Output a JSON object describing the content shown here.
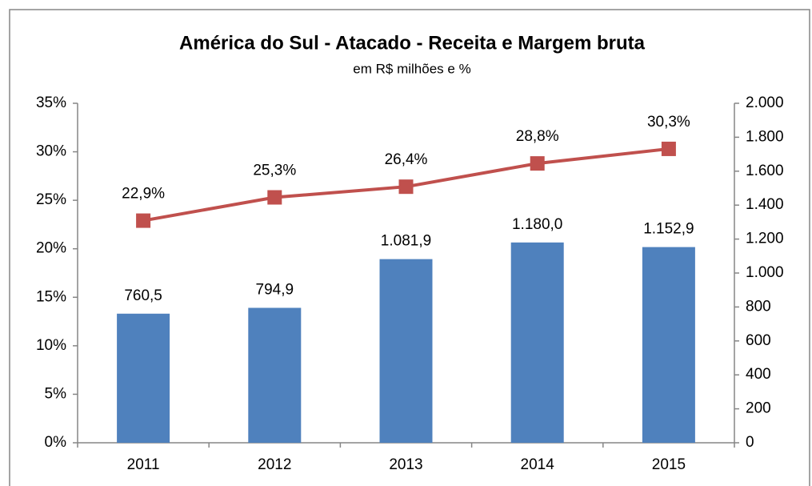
{
  "chart_data": {
    "type": "bar_line",
    "title": "América do Sul - Atacado - Receita e Margem bruta",
    "subtitle": "em R$ milhões e %",
    "categories": [
      "2011",
      "2012",
      "2013",
      "2014",
      "2015"
    ],
    "series": [
      {
        "name": "Receita",
        "type": "bar",
        "axis": "y2",
        "color": "#4f81bd",
        "values": [
          760.5,
          794.9,
          1081.9,
          1180.0,
          1152.9
        ],
        "value_labels": [
          "760,5",
          "794,9",
          "1.081,9",
          "1.180,0",
          "1.152,9"
        ]
      },
      {
        "name": "Margem bruta",
        "type": "line",
        "color": "#c0504d",
        "values": [
          22.9,
          25.3,
          26.4,
          28.8,
          30.3
        ],
        "value_labels": [
          "22,9%",
          "25,3%",
          "26,4%",
          "28,8%",
          "30,3%"
        ]
      }
    ],
    "ylim": [
      0,
      35
    ],
    "yticks": [
      {
        "value": 0,
        "label": "0%"
      },
      {
        "value": 5,
        "label": "5%"
      },
      {
        "value": 10,
        "label": "10%"
      },
      {
        "value": 15,
        "label": "15%"
      },
      {
        "value": 20,
        "label": "20%"
      },
      {
        "value": 25,
        "label": "25%"
      },
      {
        "value": 30,
        "label": "30%"
      },
      {
        "value": 35,
        "label": "35%"
      }
    ],
    "y2lim": [
      0,
      2000
    ],
    "y2ticks": [
      0,
      200,
      400,
      600,
      800,
      {
        "value": 1000,
        "label": "1.000"
      },
      {
        "value": 1200,
        "label": "1.200"
      },
      {
        "value": 1400,
        "label": "1.400"
      },
      {
        "value": 1600,
        "label": "1.600"
      },
      {
        "value": 1800,
        "label": "1.800"
      },
      {
        "value": 2000,
        "label": "2.000"
      }
    ],
    "grid": false
  }
}
